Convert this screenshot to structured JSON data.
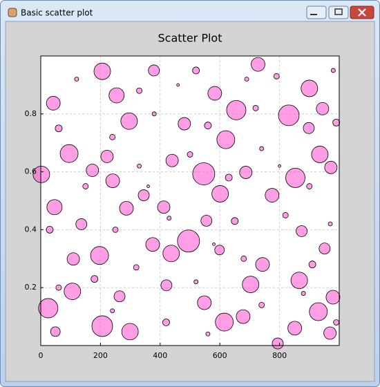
{
  "window": {
    "title": "Basic scatter plot"
  },
  "chart_data": {
    "type": "scatter",
    "title": "Scatter Plot",
    "x": [
      206,
      831,
      655,
      583,
      900,
      546,
      601,
      853,
      935,
      95,
      2,
      46,
      495,
      375,
      437,
      197,
      106,
      25,
      206,
      299,
      703,
      866,
      930,
      851,
      794,
      615,
      548,
      678,
      979,
      412,
      287,
      136,
      241,
      345,
      687,
      620,
      440,
      296,
      254,
      728,
      379,
      42,
      173,
      222,
      481,
      898,
      944,
      972,
      775,
      743,
      874,
      951,
      555,
      599,
      264,
      421,
      109,
      49,
      969,
      120,
      330,
      460,
      520,
      690,
      790,
      980,
      60,
      240,
      380,
      560,
      720,
      990,
      150,
      330,
      500,
      630,
      740,
      900,
      30,
      250,
      430,
      650,
      820,
      970,
      180,
      320,
      520,
      680,
      910,
      60,
      240,
      420,
      560,
      740,
      880,
      990,
      360,
      580,
      800
    ],
    "y": [
      0.947,
      0.795,
      0.813,
      0.871,
      0.888,
      0.593,
      0.524,
      0.579,
      0.66,
      0.663,
      0.591,
      0.478,
      0.361,
      0.349,
      0.318,
      0.311,
      0.187,
      0.129,
      0.067,
      0.048,
      0.211,
      0.225,
      0.117,
      0.06,
      0.007,
      0.081,
      0.148,
      0.1,
      0.167,
      0.478,
      0.474,
      0.419,
      0.569,
      0.519,
      0.598,
      0.711,
      0.639,
      0.775,
      0.864,
      0.971,
      0.95,
      0.837,
      0.605,
      0.653,
      0.766,
      0.751,
      0.818,
      0.615,
      0.519,
      0.28,
      0.395,
      0.335,
      0.431,
      0.33,
      0.17,
      0.208,
      0.299,
      0.048,
      0.043,
      0.92,
      0.88,
      0.9,
      0.95,
      0.92,
      0.93,
      0.95,
      0.75,
      0.72,
      0.8,
      0.76,
      0.82,
      0.77,
      0.55,
      0.62,
      0.66,
      0.58,
      0.68,
      0.55,
      0.4,
      0.4,
      0.44,
      0.43,
      0.45,
      0.42,
      0.23,
      0.27,
      0.22,
      0.3,
      0.28,
      0.2,
      0.12,
      0.08,
      0.04,
      0.14,
      0.18,
      0.08,
      0.55,
      0.35,
      0.62
    ],
    "sizes": [
      12,
      15,
      14,
      10,
      12,
      16,
      12,
      14,
      12,
      13,
      12,
      11,
      16,
      10,
      12,
      13,
      12,
      14,
      15,
      12,
      12,
      12,
      13,
      10,
      8,
      13,
      10,
      10,
      10,
      9,
      10,
      8,
      10,
      8,
      9,
      13,
      9,
      12,
      11,
      10,
      8,
      10,
      9,
      9,
      9,
      8,
      9,
      9,
      10,
      10,
      8,
      8,
      8,
      7,
      8,
      8,
      9,
      7,
      9,
      3,
      4,
      2,
      5,
      3,
      4,
      3,
      5,
      4,
      3,
      5,
      4,
      5,
      4,
      3,
      4,
      5,
      3,
      4,
      5,
      4,
      3,
      5,
      4,
      3,
      5,
      4,
      3,
      4,
      5,
      4,
      3,
      5,
      3,
      4,
      3,
      4,
      2,
      2,
      2
    ],
    "color": "#ff4fd0",
    "xlim": [
      0,
      1000
    ],
    "ylim": [
      0,
      1
    ],
    "xticks": [
      0,
      200,
      400,
      600,
      800
    ],
    "yticks": [
      0.2,
      0.4,
      0.6,
      0.8
    ],
    "grid": true
  }
}
